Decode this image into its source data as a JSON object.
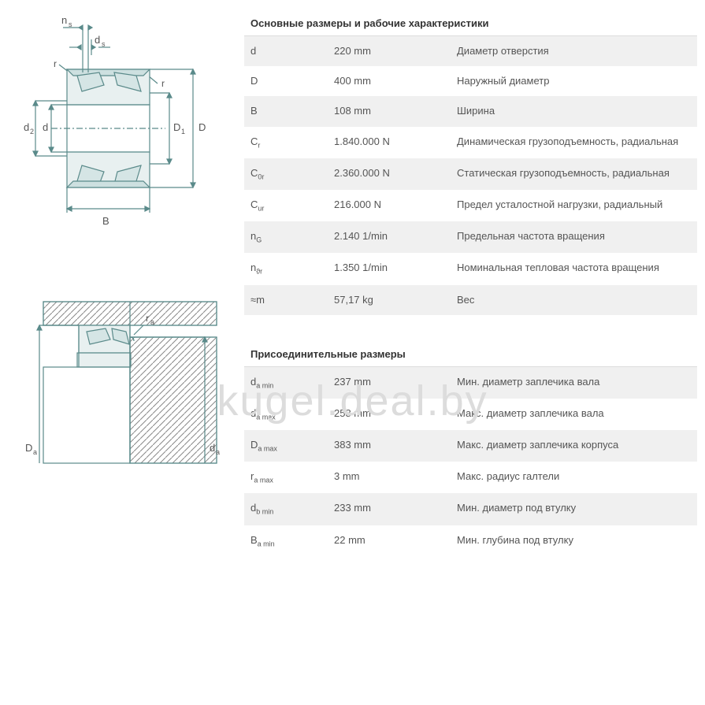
{
  "watermark": "kugel.deal.by",
  "section1": {
    "title": "Основные размеры и рабочие характеристики",
    "rows": [
      {
        "sym": "d",
        "sub": "",
        "val": "220 mm",
        "desc": "Диаметр отверстия"
      },
      {
        "sym": "D",
        "sub": "",
        "val": "400 mm",
        "desc": "Наружный диаметр"
      },
      {
        "sym": "B",
        "sub": "",
        "val": "108 mm",
        "desc": "Ширина"
      },
      {
        "sym": "C",
        "sub": "r",
        "val": "1.840.000 N",
        "desc": "Динамическая грузоподъемность, радиальная"
      },
      {
        "sym": "C",
        "sub": "0r",
        "val": "2.360.000 N",
        "desc": "Статическая грузоподъемность, радиальная"
      },
      {
        "sym": "C",
        "sub": "ur",
        "val": "216.000 N",
        "desc": "Предел усталостной нагрузки, радиальный"
      },
      {
        "sym": "n",
        "sub": "G",
        "val": "2.140 1/min",
        "desc": "Предельная частота вращения"
      },
      {
        "sym": "n",
        "sub": "ϑr",
        "val": "1.350 1/min",
        "desc": "Номинальная тепловая частота вращения"
      },
      {
        "sym": "≈m",
        "sub": "",
        "val": "57,17 kg",
        "desc": "Вес"
      }
    ]
  },
  "section2": {
    "title": "Присоединительные размеры",
    "rows": [
      {
        "sym": "d",
        "sub": "a min",
        "val": "237 mm",
        "desc": "Мин. диаметр заплечика вала"
      },
      {
        "sym": "d",
        "sub": "a max",
        "val": "258 mm",
        "desc": "Макс. диаметр заплечика вала"
      },
      {
        "sym": "D",
        "sub": "a max",
        "val": "383 mm",
        "desc": "Макс. диаметр заплечика корпуса"
      },
      {
        "sym": "r",
        "sub": "a max",
        "val": "3 mm",
        "desc": "Макс. радиус галтели"
      },
      {
        "sym": "d",
        "sub": "b min",
        "val": "233 mm",
        "desc": "Мин. диаметр под втулку"
      },
      {
        "sym": "B",
        "sub": "a min",
        "val": "22 mm",
        "desc": "Мин. глубина под втулку"
      }
    ]
  },
  "diagram1": {
    "labels": {
      "ns": "n",
      "nss": "s",
      "ds": "d",
      "dss": "s",
      "r1": "r",
      "r2": "r",
      "d2": "d",
      "d2s": "2",
      "d": "d",
      "D1": "D",
      "D1s": "1",
      "D": "D",
      "B": "B"
    }
  },
  "diagram2": {
    "labels": {
      "ra": "r",
      "ras": "a",
      "Da": "D",
      "Das": "a",
      "da": "d",
      "das": "a"
    }
  },
  "colors": {
    "stroke": "#5a8a8a",
    "hatch": "#888",
    "rowOdd": "#f0f0f0",
    "text": "#555"
  }
}
